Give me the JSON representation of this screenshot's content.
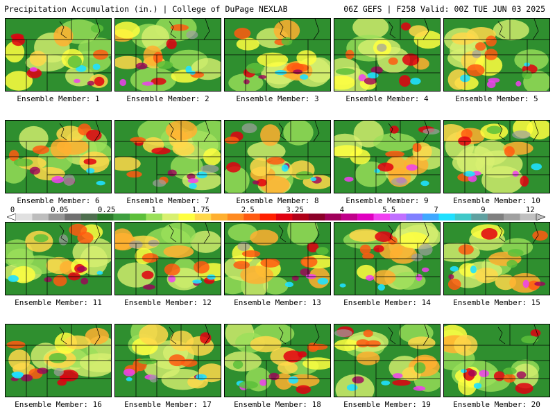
{
  "header": {
    "title_left": "Precipitation Accumulation (in.) | College of DuPage NEXLAB",
    "title_right": "06Z GEFS | F258 Valid: 00Z TUE JUN 03 2025"
  },
  "colorbar": {
    "tick_labels": [
      "0",
      "0.05",
      "0.25",
      "1",
      "1.75",
      "2.5",
      "3.25",
      "4",
      "5.5",
      "7",
      "9",
      "12"
    ],
    "colors": [
      "#e0e0e0",
      "#bdbdbd",
      "#969696",
      "#707070",
      "#4f6f4f",
      "#2a7a2a",
      "#3f9f3f",
      "#5cbf3a",
      "#9be05a",
      "#d8f070",
      "#ffff40",
      "#ffd84a",
      "#ffb030",
      "#ff8a20",
      "#ff5a10",
      "#ff2000",
      "#e00010",
      "#b00018",
      "#8a0028",
      "#a0005a",
      "#c0008a",
      "#e000c0",
      "#f040f0",
      "#c070ff",
      "#8080ff",
      "#40a8ff",
      "#20e0ff",
      "#40c8c8",
      "#60a0a0",
      "#808080",
      "#a0a0a0",
      "#c0c0c0"
    ]
  },
  "panels": [
    {
      "label": "Ensemble Member: 1"
    },
    {
      "label": "Ensemble Member: 2"
    },
    {
      "label": "Ensemble Member: 3"
    },
    {
      "label": "Ensemble Member: 4"
    },
    {
      "label": "Ensemble Member: 5"
    },
    {
      "label": "Ensemble Member: 6"
    },
    {
      "label": "Ensemble Member: 7"
    },
    {
      "label": "Ensemble Member: 8"
    },
    {
      "label": "Ensemble Member: 9"
    },
    {
      "label": "Ensemble Member: 10"
    },
    {
      "label": "Ensemble Member: 11"
    },
    {
      "label": "Ensemble Member: 12"
    },
    {
      "label": "Ensemble Member: 13"
    },
    {
      "label": "Ensemble Member: 14"
    },
    {
      "label": "Ensemble Member: 15"
    },
    {
      "label": "Ensemble Member: 16"
    },
    {
      "label": "Ensemble Member: 17"
    },
    {
      "label": "Ensemble Member: 18"
    },
    {
      "label": "Ensemble Member: 19"
    },
    {
      "label": "Ensemble Member: 20"
    }
  ]
}
